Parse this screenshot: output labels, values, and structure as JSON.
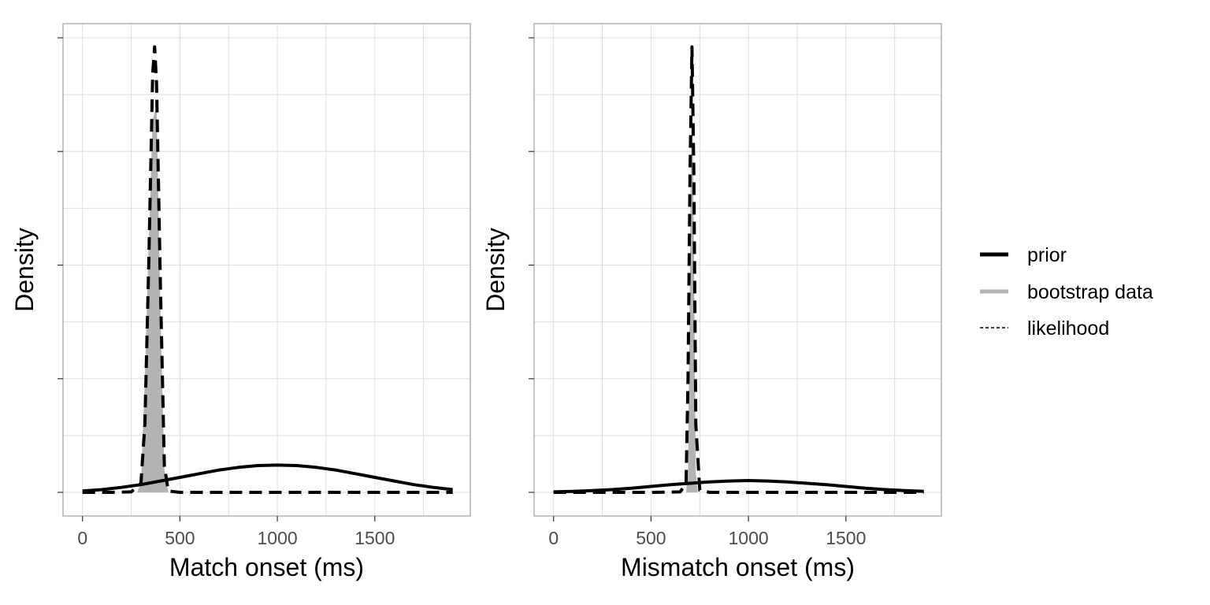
{
  "chart_data": [
    {
      "type": "area",
      "xlabel": "Match onset (ms)",
      "ylabel": "Density",
      "xlim": [
        -100,
        1990
      ],
      "ylim": [
        0,
        1
      ],
      "x_ticks": [
        0,
        500,
        1000,
        1500
      ],
      "x_tick_labels": [
        "0",
        "500",
        "1000",
        "1500"
      ],
      "grid": true,
      "series": [
        {
          "name": "prior",
          "style": "solid",
          "x": [
            0,
            100,
            200,
            300,
            400,
            500,
            600,
            700,
            800,
            900,
            1000,
            1100,
            1200,
            1300,
            1400,
            1500,
            1600,
            1700,
            1800,
            1900
          ],
          "y": [
            0.003,
            0.006,
            0.011,
            0.017,
            0.025,
            0.033,
            0.041,
            0.049,
            0.055,
            0.059,
            0.06,
            0.059,
            0.055,
            0.049,
            0.041,
            0.033,
            0.025,
            0.017,
            0.011,
            0.006
          ]
        },
        {
          "name": "bootstrap data",
          "style": "filled",
          "x": [
            280,
            300,
            320,
            340,
            360,
            380,
            400,
            420,
            440
          ],
          "y": [
            0,
            0.02,
            0.25,
            0.55,
            0.82,
            0.85,
            0.4,
            0.05,
            0
          ]
        },
        {
          "name": "likelihood",
          "style": "dashed",
          "x": [
            0,
            150,
            250,
            300,
            320,
            340,
            360,
            370,
            380,
            400,
            420,
            440,
            500,
            1000,
            1500,
            1900
          ],
          "y": [
            0,
            0,
            0.001,
            0.02,
            0.15,
            0.5,
            0.92,
            0.98,
            0.9,
            0.45,
            0.06,
            0.003,
            0,
            0,
            0,
            0
          ]
        }
      ]
    },
    {
      "type": "area",
      "xlabel": "Mismatch onset (ms)",
      "ylabel": "Density",
      "xlim": [
        -100,
        1990
      ],
      "ylim": [
        0,
        1
      ],
      "x_ticks": [
        0,
        500,
        1000,
        1500
      ],
      "x_tick_labels": [
        "0",
        "500",
        "1000",
        "1500"
      ],
      "grid": true,
      "series": [
        {
          "name": "prior",
          "style": "solid",
          "x": [
            0,
            100,
            200,
            300,
            400,
            500,
            600,
            700,
            800,
            900,
            1000,
            1100,
            1200,
            1300,
            1400,
            1500,
            1600,
            1700,
            1800,
            1900
          ],
          "y": [
            0.001,
            0.002,
            0.004,
            0.006,
            0.009,
            0.013,
            0.017,
            0.02,
            0.023,
            0.025,
            0.026,
            0.025,
            0.023,
            0.02,
            0.017,
            0.013,
            0.009,
            0.006,
            0.004,
            0.002
          ]
        },
        {
          "name": "bootstrap data",
          "style": "filled",
          "x": [
            680,
            690,
            700,
            710,
            720,
            730,
            740
          ],
          "y": [
            0,
            0.04,
            0.5,
            0.92,
            0.55,
            0.04,
            0
          ]
        },
        {
          "name": "likelihood",
          "style": "dashed",
          "x": [
            0,
            500,
            650,
            680,
            690,
            700,
            710,
            720,
            730,
            750,
            800,
            1000,
            1500,
            1900
          ],
          "y": [
            0,
            0,
            0.001,
            0.02,
            0.25,
            0.7,
            0.98,
            0.7,
            0.15,
            0.005,
            0,
            0,
            0,
            0
          ]
        }
      ]
    }
  ],
  "legend": {
    "position": "right",
    "items": [
      {
        "label": "prior",
        "style": "solid",
        "color": "#000000"
      },
      {
        "label": "bootstrap data",
        "style": "filled",
        "color": "#b3b3b3"
      },
      {
        "label": "likelihood",
        "style": "dashed",
        "color": "#000000"
      }
    ]
  },
  "colors": {
    "prior": "#000000",
    "bootstrap_fill": "#b3b3b3",
    "likelihood": "#000000",
    "grid": "#dedede",
    "panel_border": "#b3b3b3",
    "tick_label": "#4d4d4d"
  }
}
